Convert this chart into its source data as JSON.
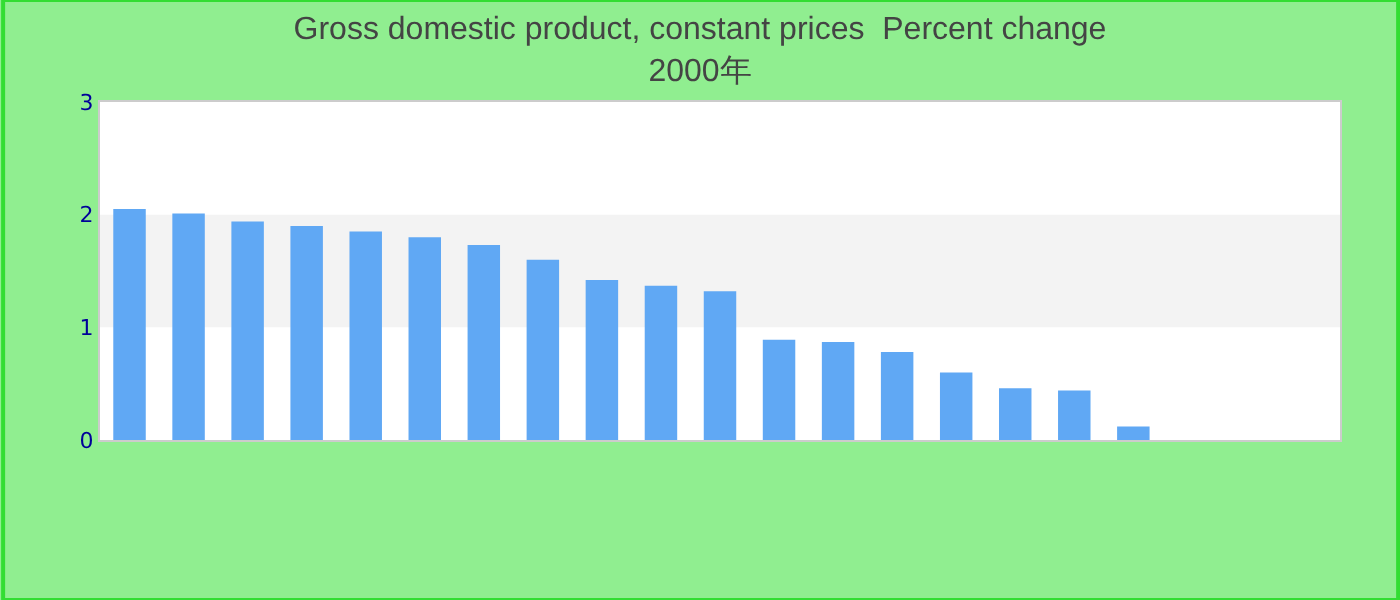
{
  "chart_data": {
    "type": "bar",
    "title": "Gross domestic product, constant prices  Percent change",
    "subtitle": "2000年",
    "categories": [
      null,
      null,
      null,
      null,
      null,
      null,
      null,
      null,
      null,
      null,
      null,
      null,
      null,
      null,
      null,
      null,
      null,
      null,
      null,
      null,
      null
    ],
    "values": [
      2.05,
      2.01,
      1.94,
      1.9,
      1.85,
      1.8,
      1.73,
      1.6,
      1.42,
      1.37,
      1.32,
      0.89,
      0.87,
      0.78,
      0.6,
      0.46,
      0.44,
      0.12,
      0,
      0,
      0
    ],
    "color": "#60a8f4",
    "ylim": [
      0,
      3
    ],
    "yticks": [
      0,
      1,
      2,
      3
    ],
    "grid": false,
    "bands": [
      {
        "axis": "y",
        "from": 1,
        "to": 2,
        "color": "#f3f3f3"
      }
    ],
    "legend": false
  }
}
